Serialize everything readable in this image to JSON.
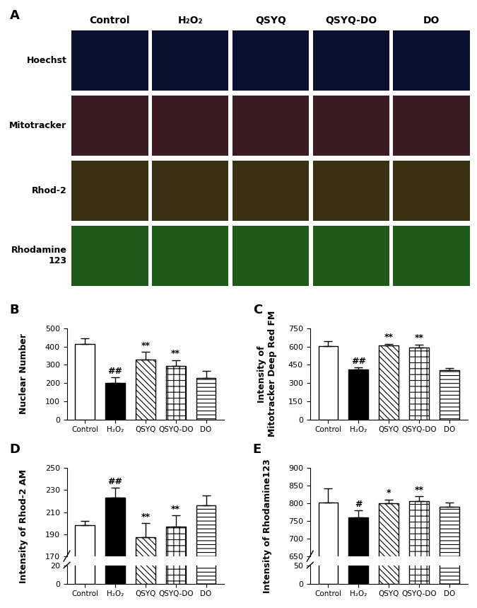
{
  "image_panel": {
    "panel": "A",
    "columns": [
      "Control",
      "H₂O₂",
      "QSYQ",
      "QSYQ-DO",
      "DO"
    ],
    "rows": [
      "Hoechst",
      "Mitotracker",
      "Rhod-2",
      "Rhodamine\n123"
    ]
  },
  "chart_data": [
    {
      "type": "bar",
      "panel": "B",
      "y_label": "Nuclear Number",
      "categories": [
        "Control",
        "H₂O₂",
        "QSYQ",
        "QSYQ-DO",
        "DO"
      ],
      "values": [
        415,
        200,
        330,
        295,
        228
      ],
      "errors": [
        30,
        30,
        40,
        30,
        40
      ],
      "colors": [
        "#ffffff",
        "#000000",
        "#ffffff",
        "#ffffff",
        "#ffffff"
      ],
      "annotations": [
        null,
        "##",
        "**",
        "**",
        null
      ],
      "ylim": [
        0,
        500
      ],
      "yticks": [
        0,
        100,
        200,
        300,
        400,
        500
      ]
    },
    {
      "type": "bar",
      "panel": "C",
      "y_label": "Intensity of\nMitotracker Deep Red FM",
      "categories": [
        "Control",
        "H₂O₂",
        "QSYQ",
        "QSYQ-DO",
        "DO"
      ],
      "values": [
        605,
        410,
        612,
        592,
        405
      ],
      "errors": [
        40,
        18,
        10,
        25,
        18
      ],
      "colors": [
        "#ffffff",
        "#000000",
        "#ffffff",
        "#ffffff",
        "#ffffff"
      ],
      "annotations": [
        null,
        "##",
        "**",
        "**",
        null
      ],
      "ylim": [
        0,
        750
      ],
      "yticks": [
        0,
        150,
        300,
        450,
        600,
        750
      ]
    },
    {
      "type": "bar",
      "panel": "D",
      "y_label": "Intensity of Rhod-2 AM",
      "categories": [
        "Control",
        "H₂O₂",
        "QSYQ",
        "QSYQ-DO",
        "DO"
      ],
      "values": [
        198,
        223,
        187,
        197,
        216
      ],
      "errors": [
        4,
        9,
        13,
        10,
        9
      ],
      "colors": [
        "#ffffff",
        "#000000",
        "#ffffff",
        "#ffffff",
        "#ffffff"
      ],
      "annotations": [
        null,
        "##",
        "**",
        "**",
        null
      ],
      "ylim": [
        170,
        250
      ],
      "yticks": [
        170,
        190,
        210,
        230,
        250
      ],
      "lower_ylim": [
        0,
        20
      ],
      "lower_yticks": [
        0,
        20
      ]
    },
    {
      "type": "bar",
      "panel": "E",
      "y_label": "Intensity of Rhodamine123",
      "categories": [
        "Control",
        "H₂O₂",
        "QSYQ",
        "QSYQ-DO",
        "DO"
      ],
      "values": [
        803,
        760,
        801,
        807,
        790
      ],
      "errors": [
        40,
        20,
        10,
        13,
        12
      ],
      "colors": [
        "#ffffff",
        "#000000",
        "#ffffff",
        "#ffffff",
        "#ffffff"
      ],
      "annotations": [
        null,
        "#",
        "*",
        "**",
        null
      ],
      "ylim": [
        650,
        900
      ],
      "yticks": [
        650,
        700,
        750,
        800,
        850,
        900
      ],
      "lower_ylim": [
        0,
        50
      ],
      "lower_yticks": [
        0,
        50
      ]
    }
  ]
}
